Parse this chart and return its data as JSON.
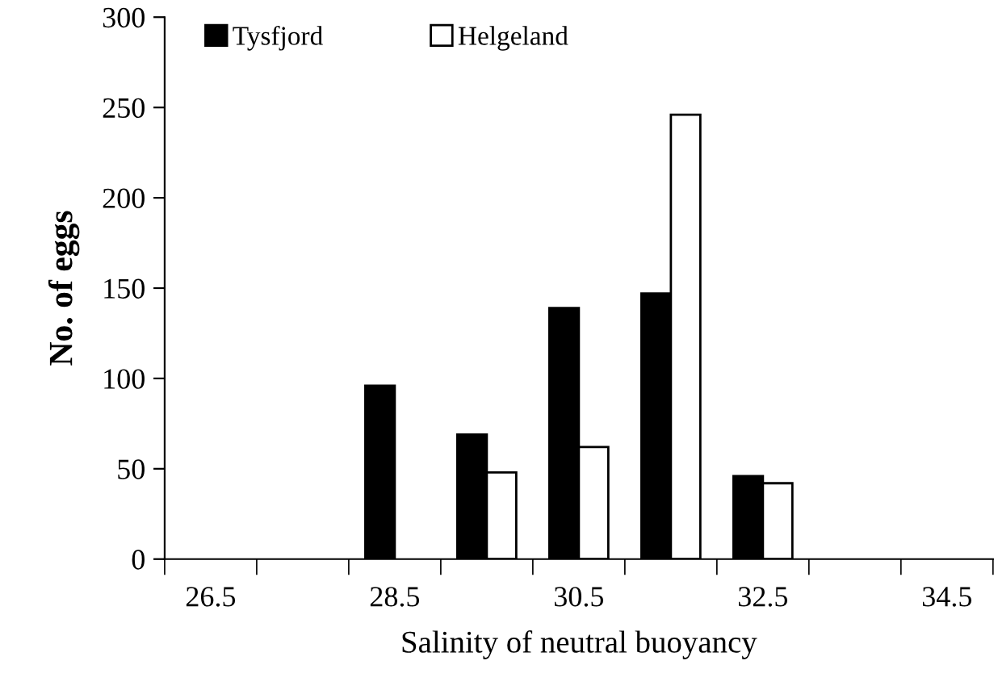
{
  "chart_data": {
    "type": "bar",
    "xlabel": "Salinity of neutral buoyancy",
    "ylabel": "No. of eggs",
    "categories": [
      "26.5",
      null,
      "28.5",
      null,
      "30.5",
      null,
      "32.5",
      null,
      "34.5"
    ],
    "series": [
      {
        "name": "Tysfjord",
        "color": "#000000",
        "values": [
          0,
          0,
          96,
          69,
          139,
          147,
          46,
          0,
          0
        ]
      },
      {
        "name": "Helgeland",
        "color": "#ffffff",
        "values": [
          0,
          0,
          0,
          48,
          62,
          246,
          42,
          0,
          0
        ]
      }
    ],
    "ylim": [
      0,
      300
    ],
    "yticks": [
      0,
      50,
      100,
      150,
      200,
      250,
      300
    ],
    "grid": false,
    "legend": "top left"
  }
}
